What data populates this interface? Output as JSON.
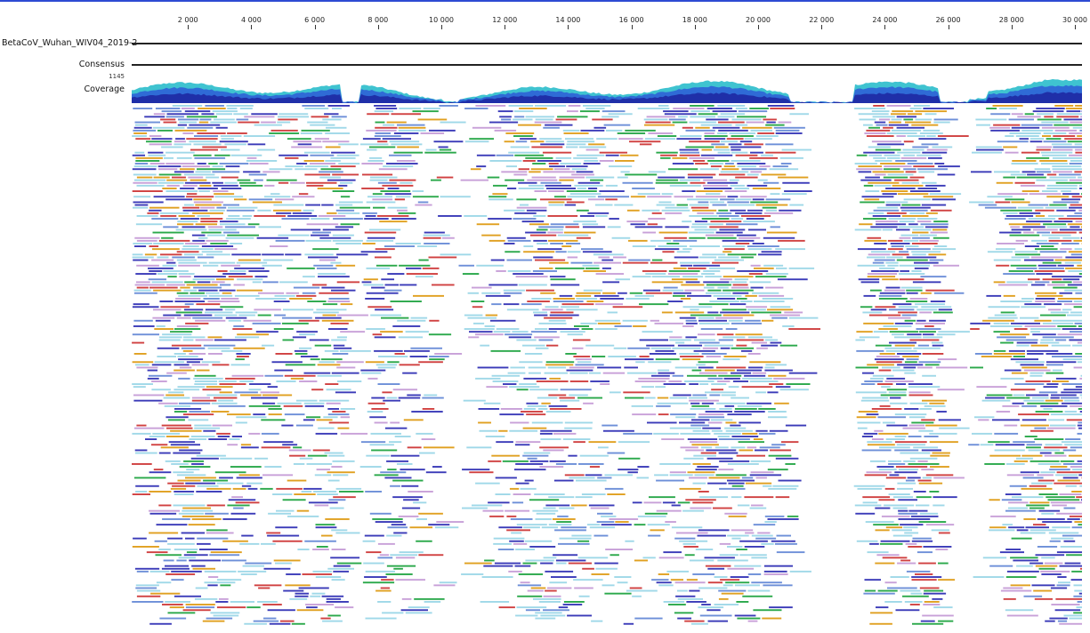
{
  "ruler": {
    "ticks": [
      "2 000",
      "4 000",
      "6 000",
      "8 000",
      "10 000",
      "12 000",
      "14 000",
      "16 000",
      "18 000",
      "20 000",
      "22 000",
      "24 000",
      "26 000",
      "28 000",
      "30 000"
    ],
    "min": 1,
    "max": 30000
  },
  "tracks": {
    "sequence_name": "BetaCoV_Wuhan_WIV04_2019-2",
    "consensus_label": "Consensus",
    "coverage_max": "1145",
    "coverage_label": "Coverage"
  },
  "colors": {
    "ruler_top": "#2d4bd3",
    "coverage_dark": "#1f2fa8",
    "coverage_mid": "#2f6bd6",
    "coverage_light": "#3fc3d0",
    "read_A": "#d04040",
    "read_C": "#3a3ab8",
    "read_G": "#2aa84a",
    "read_T": "#e0a020",
    "read_match": "#9fd8e8"
  },
  "gaps": [
    [
      6600,
      7200
    ],
    [
      9800,
      10300
    ],
    [
      20800,
      22800
    ],
    [
      25500,
      26400
    ]
  ]
}
